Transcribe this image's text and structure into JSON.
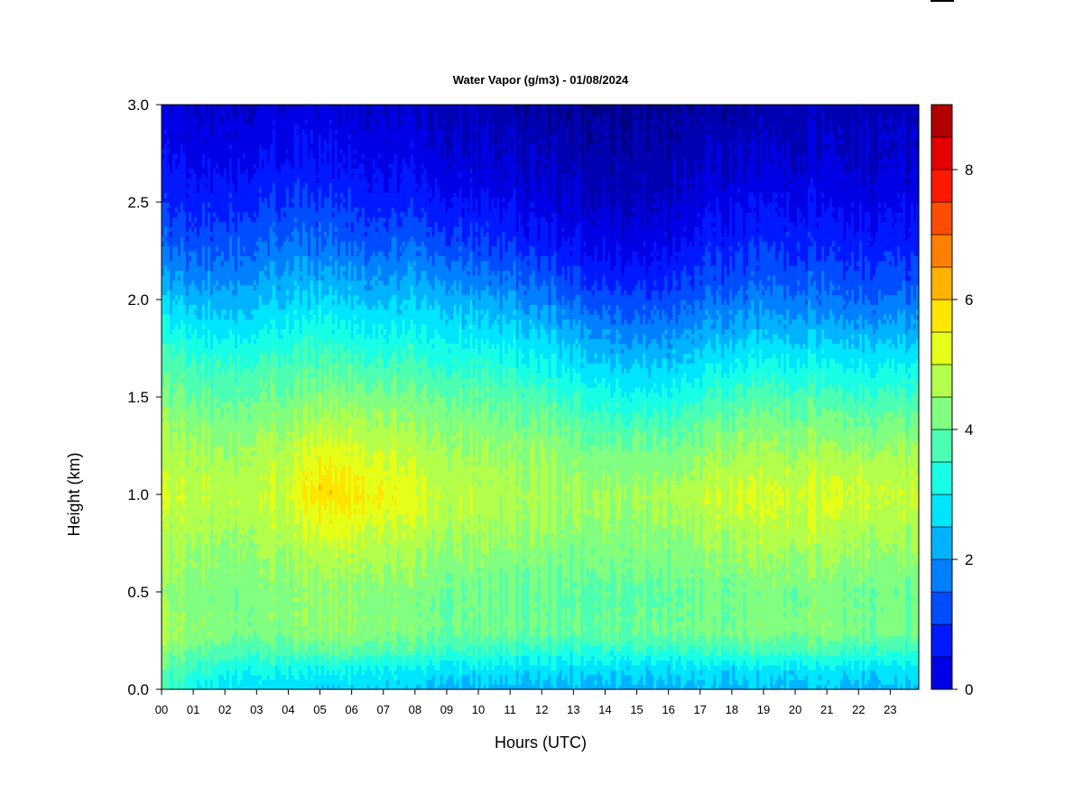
{
  "chart_data": {
    "type": "heatmap",
    "title": "Water Vapor (g/m3) - 01/08/2024",
    "xlabel": "Hours (UTC)",
    "ylabel": "Height (km)",
    "xlim": [
      0,
      23.9
    ],
    "ylim": [
      0,
      3.0
    ],
    "x_tick_labels": [
      "00",
      "01",
      "02",
      "03",
      "04",
      "05",
      "06",
      "07",
      "08",
      "09",
      "10",
      "11",
      "12",
      "13",
      "14",
      "15",
      "16",
      "17",
      "18",
      "19",
      "20",
      "21",
      "22",
      "23"
    ],
    "y_ticks": [
      0.0,
      0.5,
      1.0,
      1.5,
      2.0,
      2.5,
      3.0
    ],
    "y_tick_labels": [
      "0.0",
      "0.5",
      "1.0",
      "1.5",
      "2.0",
      "2.5",
      "3.0"
    ],
    "colorbar": {
      "levels": [
        0,
        0.5,
        1,
        1.5,
        2,
        2.5,
        3,
        3.5,
        4,
        4.5,
        5,
        5.5,
        6,
        6.5,
        7,
        7.5,
        8,
        8.5,
        9
      ],
      "tick_values": [
        0,
        2,
        4,
        6,
        8
      ],
      "tick_labels": [
        "0",
        "2",
        "4",
        "6",
        "8"
      ],
      "colors": [
        "#00007f",
        "#0000b2",
        "#0000e5",
        "#0019ff",
        "#004cff",
        "#0080ff",
        "#00b2ff",
        "#00e5ff",
        "#19ffe5",
        "#4cffb2",
        "#80ff80",
        "#b2ff4c",
        "#e5ff19",
        "#ffe500",
        "#ffb200",
        "#ff8000",
        "#ff4c00",
        "#ff1900",
        "#e50000",
        "#b20000",
        "#7f0000"
      ]
    },
    "profile_heights_km": [
      0.0,
      0.1,
      0.2,
      0.3,
      0.5,
      0.7,
      0.9,
      1.0,
      1.1,
      1.3,
      1.5,
      1.7,
      1.9,
      2.1,
      2.3,
      2.5,
      2.7,
      2.9,
      3.0
    ],
    "profiles": [
      {
        "hour": 0,
        "values": [
          4.6,
          4.9,
          5.3,
          5.6,
          5.4,
          5.6,
          5.9,
          6.0,
          5.9,
          5.6,
          5.2,
          4.7,
          4.0,
          3.1,
          2.4,
          1.9,
          1.5,
          1.2,
          1.1
        ]
      },
      {
        "hour": 1,
        "values": [
          4.1,
          4.5,
          5.0,
          5.4,
          5.3,
          5.5,
          5.8,
          5.9,
          5.8,
          5.5,
          5.0,
          4.5,
          3.7,
          2.9,
          2.2,
          1.8,
          1.4,
          1.1,
          1.0
        ]
      },
      {
        "hour": 2,
        "values": [
          3.8,
          4.2,
          4.8,
          5.3,
          5.2,
          5.4,
          5.7,
          5.8,
          5.7,
          5.4,
          4.9,
          4.4,
          3.6,
          2.9,
          2.3,
          1.8,
          1.4,
          1.1,
          1.0
        ]
      },
      {
        "hour": 3,
        "values": [
          3.7,
          4.1,
          4.7,
          5.2,
          5.2,
          5.5,
          5.8,
          5.9,
          5.8,
          5.5,
          5.0,
          4.5,
          3.7,
          3.0,
          2.4,
          1.9,
          1.5,
          1.2,
          1.0
        ]
      },
      {
        "hour": 4,
        "values": [
          3.7,
          4.1,
          4.8,
          5.3,
          5.3,
          5.6,
          5.9,
          6.1,
          6.0,
          5.6,
          5.1,
          4.6,
          3.9,
          3.2,
          2.6,
          2.1,
          1.6,
          1.3,
          1.1
        ]
      },
      {
        "hour": 5,
        "values": [
          3.6,
          4.0,
          4.9,
          5.4,
          5.4,
          5.8,
          6.4,
          6.8,
          6.6,
          6.0,
          5.3,
          4.7,
          4.0,
          3.2,
          2.5,
          2.0,
          1.6,
          1.3,
          1.1
        ]
      },
      {
        "hour": 6,
        "values": [
          3.6,
          4.0,
          4.9,
          5.4,
          5.4,
          5.8,
          6.4,
          6.7,
          6.5,
          5.9,
          5.3,
          4.6,
          3.9,
          3.1,
          2.4,
          1.9,
          1.5,
          1.2,
          1.0
        ]
      },
      {
        "hour": 7,
        "values": [
          3.6,
          4.0,
          4.8,
          5.3,
          5.3,
          5.7,
          6.2,
          6.5,
          6.3,
          5.8,
          5.2,
          4.5,
          3.8,
          3.0,
          2.3,
          1.8,
          1.4,
          1.1,
          1.0
        ]
      },
      {
        "hour": 8,
        "values": [
          3.5,
          3.9,
          4.7,
          5.2,
          5.2,
          5.6,
          6.0,
          6.2,
          6.0,
          5.6,
          5.1,
          4.5,
          3.8,
          3.1,
          2.4,
          1.8,
          1.4,
          1.1,
          0.9
        ]
      },
      {
        "hour": 9,
        "values": [
          3.3,
          3.8,
          4.6,
          5.1,
          5.1,
          5.4,
          5.8,
          5.9,
          5.8,
          5.5,
          5.0,
          4.4,
          3.7,
          3.0,
          2.2,
          1.6,
          1.2,
          1.0,
          0.8
        ]
      },
      {
        "hour": 10,
        "values": [
          3.3,
          3.8,
          4.6,
          5.1,
          5.1,
          5.4,
          5.7,
          5.8,
          5.7,
          5.4,
          4.9,
          4.3,
          3.5,
          2.7,
          2.0,
          1.5,
          1.1,
          0.9,
          0.7
        ]
      },
      {
        "hour": 11,
        "values": [
          3.3,
          3.7,
          4.5,
          5.1,
          5.0,
          5.3,
          5.6,
          5.7,
          5.6,
          5.3,
          4.8,
          4.2,
          3.4,
          2.6,
          1.9,
          1.4,
          1.0,
          0.8,
          0.6
        ]
      },
      {
        "hour": 12,
        "values": [
          3.3,
          3.7,
          4.4,
          5.0,
          5.0,
          5.3,
          5.6,
          5.7,
          5.6,
          5.3,
          4.7,
          4.0,
          3.2,
          2.4,
          1.7,
          1.2,
          0.9,
          0.7,
          0.5
        ]
      },
      {
        "hour": 13,
        "values": [
          3.3,
          3.7,
          4.4,
          5.0,
          4.9,
          5.2,
          5.5,
          5.6,
          5.5,
          5.1,
          4.5,
          3.7,
          2.9,
          2.1,
          1.5,
          1.1,
          0.8,
          0.6,
          0.5
        ]
      },
      {
        "hour": 14,
        "values": [
          3.3,
          3.6,
          4.4,
          5.0,
          4.9,
          5.2,
          5.5,
          5.6,
          5.4,
          4.9,
          4.2,
          3.4,
          2.6,
          1.8,
          1.3,
          0.9,
          0.7,
          0.5,
          0.4
        ]
      },
      {
        "hour": 15,
        "values": [
          3.3,
          3.6,
          4.4,
          5.0,
          4.9,
          5.2,
          5.5,
          5.6,
          5.4,
          4.9,
          4.1,
          3.3,
          2.5,
          1.8,
          1.2,
          0.9,
          0.7,
          0.5,
          0.4
        ]
      },
      {
        "hour": 16,
        "values": [
          3.3,
          3.6,
          4.4,
          5.0,
          4.9,
          5.2,
          5.5,
          5.6,
          5.4,
          4.9,
          4.1,
          3.3,
          2.5,
          1.8,
          1.3,
          0.9,
          0.7,
          0.5,
          0.4
        ]
      },
      {
        "hour": 17,
        "values": [
          3.3,
          3.7,
          4.5,
          5.1,
          5.0,
          5.3,
          5.7,
          5.8,
          5.6,
          5.1,
          4.4,
          3.6,
          2.8,
          2.1,
          1.6,
          1.2,
          0.9,
          0.7,
          0.5
        ]
      },
      {
        "hour": 18,
        "values": [
          3.3,
          3.7,
          4.6,
          5.2,
          5.1,
          5.5,
          5.9,
          6.1,
          5.9,
          5.4,
          4.7,
          3.9,
          3.0,
          2.3,
          1.8,
          1.4,
          1.0,
          0.8,
          0.6
        ]
      },
      {
        "hour": 19,
        "values": [
          3.4,
          3.8,
          4.7,
          5.3,
          5.2,
          5.6,
          6.0,
          6.1,
          5.9,
          5.4,
          4.8,
          4.0,
          3.1,
          2.4,
          1.9,
          1.5,
          1.1,
          0.9,
          0.7
        ]
      },
      {
        "hour": 20,
        "values": [
          3.4,
          3.8,
          4.7,
          5.3,
          5.2,
          5.6,
          6.0,
          6.1,
          5.9,
          5.4,
          4.8,
          4.0,
          3.1,
          2.4,
          1.9,
          1.5,
          1.1,
          0.9,
          0.8
        ]
      },
      {
        "hour": 21,
        "values": [
          3.4,
          3.8,
          4.7,
          5.3,
          5.2,
          5.6,
          6.0,
          6.1,
          5.9,
          5.4,
          4.7,
          3.9,
          3.0,
          2.3,
          1.8,
          1.4,
          1.1,
          0.9,
          0.8
        ]
      },
      {
        "hour": 22,
        "values": [
          3.3,
          3.7,
          4.6,
          5.2,
          5.1,
          5.5,
          5.9,
          6.1,
          5.9,
          5.3,
          4.6,
          3.8,
          2.9,
          2.2,
          1.7,
          1.3,
          1.0,
          0.9,
          0.8
        ]
      },
      {
        "hour": 23,
        "values": [
          3.3,
          3.7,
          4.5,
          5.1,
          5.0,
          5.4,
          5.8,
          5.9,
          5.8,
          5.3,
          4.6,
          3.8,
          2.9,
          2.2,
          1.7,
          1.3,
          1.0,
          0.9,
          0.8
        ]
      },
      {
        "hour": 23.9,
        "values": [
          3.3,
          3.7,
          4.5,
          5.1,
          5.0,
          5.4,
          5.8,
          5.9,
          5.8,
          5.3,
          4.6,
          3.8,
          2.9,
          2.2,
          1.7,
          1.3,
          1.0,
          0.9,
          0.8
        ]
      }
    ]
  }
}
